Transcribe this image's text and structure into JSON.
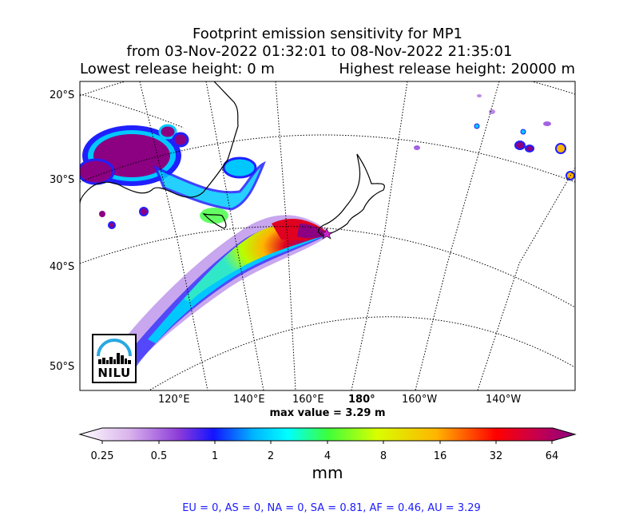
{
  "title": {
    "line1": "Footprint emission sensitivity for MP1",
    "line2": "from 03-Nov-2022 01:32:01 to 08-Nov-2022 21:35:01",
    "lowest": "Lowest release height: 0 m",
    "highest": "Highest release height: 20000 m"
  },
  "map": {
    "lat_labels": [
      "20°S",
      "30°S",
      "40°S",
      "50°S"
    ],
    "lon_labels": [
      "120°E",
      "140°E",
      "160°E",
      "180°",
      "160°W",
      "140°W"
    ],
    "max_value": "max value = 3.29 m",
    "logo": "NILU"
  },
  "colorbar": {
    "ticks": [
      "0.25",
      "0.5",
      "1",
      "2",
      "4",
      "8",
      "16",
      "32",
      "64"
    ],
    "unit": "mm",
    "colors": [
      "#ffffff",
      "#d9b3ec",
      "#8c3bd9",
      "#1414ff",
      "#00b4ff",
      "#00ffff",
      "#3cff3c",
      "#d8ff00",
      "#ffb400",
      "#ff0000",
      "#c8004b",
      "#8c0082"
    ]
  },
  "footer": "EU = 0,  AS = 0,  NA = 0,  SA = 0.81,  AF = 0.46,  AU = 3.29"
}
